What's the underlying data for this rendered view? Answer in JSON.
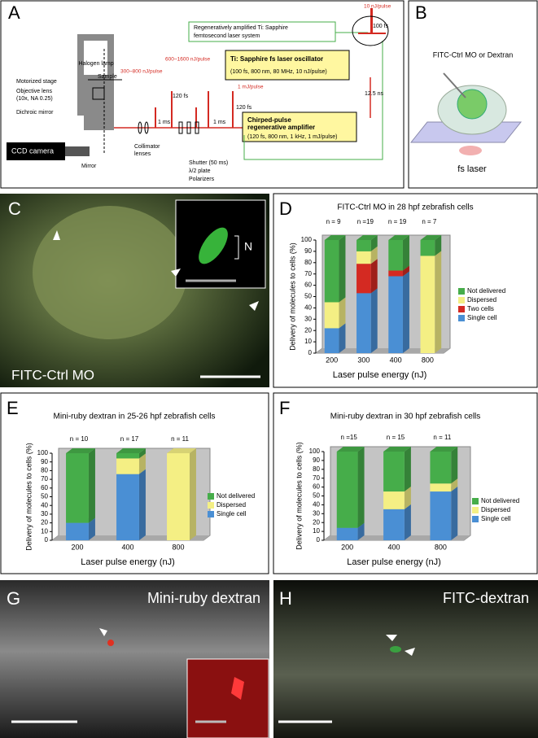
{
  "panels": {
    "A": {
      "letter": "A",
      "halogen": "Halogen lamp",
      "sample": "Sample",
      "stage": "Motorized stage",
      "objective": "Objective lens",
      "objective_spec": "(10x, NA 0.25)",
      "dichroic": "Dichroic mirror",
      "ccd": "CCD camera",
      "mirror": "Mirror",
      "collimator_1": "Collimator",
      "collimator_2": "lenses",
      "shutter": "Shutter (50 ms)",
      "plate": "λ/2 plate",
      "polarizers": "Polarizers",
      "system_1": "Regeneratively amplified Ti: Sapphire",
      "system_2": "femtosecond laser system",
      "oscillator": "Ti: Sapphire fs laser oscillator",
      "oscillator_spec": "(100 fs, 800 nm, 80 MHz, 10 nJ/pulse)",
      "amplifier_1": "Chirped-pulse",
      "amplifier_2": "regenerative amplifier",
      "amplifier_spec": "(120 fs, 800 nm, 1 kHz, 1 mJ/pulse)",
      "pulse_10nj": "10 nJ/pulse",
      "width_100fs": "100 fs",
      "period_12ns": "12.5 ns",
      "pulse_1mj": "1 mJ/pulse",
      "width_120fs_a": "120 fs",
      "period_1ms_a": "1 ms",
      "pulse_600": "600~1600 nJ/pulse",
      "width_120fs_b": "120 fs",
      "period_1ms_b": "1 ms",
      "pulse_300": "300~800 nJ/pulse"
    },
    "B": {
      "letter": "B",
      "caption": "FITC-Ctrl MO or Dextran",
      "laser": "fs laser"
    },
    "C": {
      "letter": "C",
      "caption": "FITC-Ctrl MO",
      "inset_label": "N"
    },
    "G": {
      "letter": "G",
      "caption": "Mini-ruby dextran"
    },
    "H": {
      "letter": "H",
      "caption": "FITC-dextran"
    }
  },
  "chart_data": [
    {
      "type": "bar",
      "stacked": true,
      "letter": "D",
      "title": "FITC-Ctrl MO in 28 hpf zebrafish cells",
      "n_labels": [
        "n = 9",
        "n =19",
        "n = 19",
        "n = 7"
      ],
      "ylabel": "Delivery of molecules to cells (%)",
      "xlabel": "Laser pulse energy (nJ)",
      "categories": [
        "200",
        "300",
        "400",
        "800"
      ],
      "series": [
        {
          "name": "Single cell",
          "color": "#4a8fd4",
          "values": [
            22,
            53,
            68,
            0
          ]
        },
        {
          "name": "Two cells",
          "color": "#d42a22",
          "values": [
            0,
            26,
            5,
            0
          ]
        },
        {
          "name": "Dispersed",
          "color": "#f4ef84",
          "values": [
            23,
            11,
            0,
            86
          ]
        },
        {
          "name": "Not delivered",
          "color": "#46ad4a",
          "values": [
            55,
            10,
            27,
            14
          ]
        }
      ],
      "ylim": [
        0,
        100
      ],
      "yticks": [
        0,
        10,
        20,
        30,
        40,
        50,
        60,
        70,
        80,
        90,
        100
      ]
    },
    {
      "type": "bar",
      "stacked": true,
      "letter": "E",
      "title": "Mini-ruby dextran in 25-26 hpf zebrafish cells",
      "n_labels": [
        "n = 10",
        "n = 17",
        "n = 11"
      ],
      "ylabel": "Delivery of molecules to cells (%)",
      "xlabel": "Laser pulse energy (nJ)",
      "categories": [
        "200",
        "400",
        "800"
      ],
      "series": [
        {
          "name": "Single cell",
          "color": "#4a8fd4",
          "values": [
            20,
            76,
            0
          ]
        },
        {
          "name": "Dispersed",
          "color": "#f4ef84",
          "values": [
            0,
            18,
            100
          ]
        },
        {
          "name": "Not delivered",
          "color": "#46ad4a",
          "values": [
            80,
            6,
            0
          ]
        }
      ],
      "ylim": [
        0,
        100
      ],
      "yticks": [
        0,
        10,
        20,
        30,
        40,
        50,
        60,
        70,
        80,
        90,
        100
      ]
    },
    {
      "type": "bar",
      "stacked": true,
      "letter": "F",
      "title": "Mini-ruby dextran in 30 hpf zebrafish cells",
      "n_labels": [
        "n =15",
        "n = 15",
        "n = 11"
      ],
      "ylabel": "Delivery of molecules to cells (%)",
      "xlabel": "Laser pulse energy (nJ)",
      "categories": [
        "200",
        "400",
        "800"
      ],
      "series": [
        {
          "name": "Single cell",
          "color": "#4a8fd4",
          "values": [
            14,
            35,
            55
          ]
        },
        {
          "name": "Dispersed",
          "color": "#f4ef84",
          "values": [
            0,
            20,
            9
          ]
        },
        {
          "name": "Not delivered",
          "color": "#46ad4a",
          "values": [
            86,
            45,
            36
          ]
        }
      ],
      "ylim": [
        0,
        100
      ],
      "yticks": [
        0,
        10,
        20,
        30,
        40,
        50,
        60,
        70,
        80,
        90,
        100
      ]
    }
  ]
}
